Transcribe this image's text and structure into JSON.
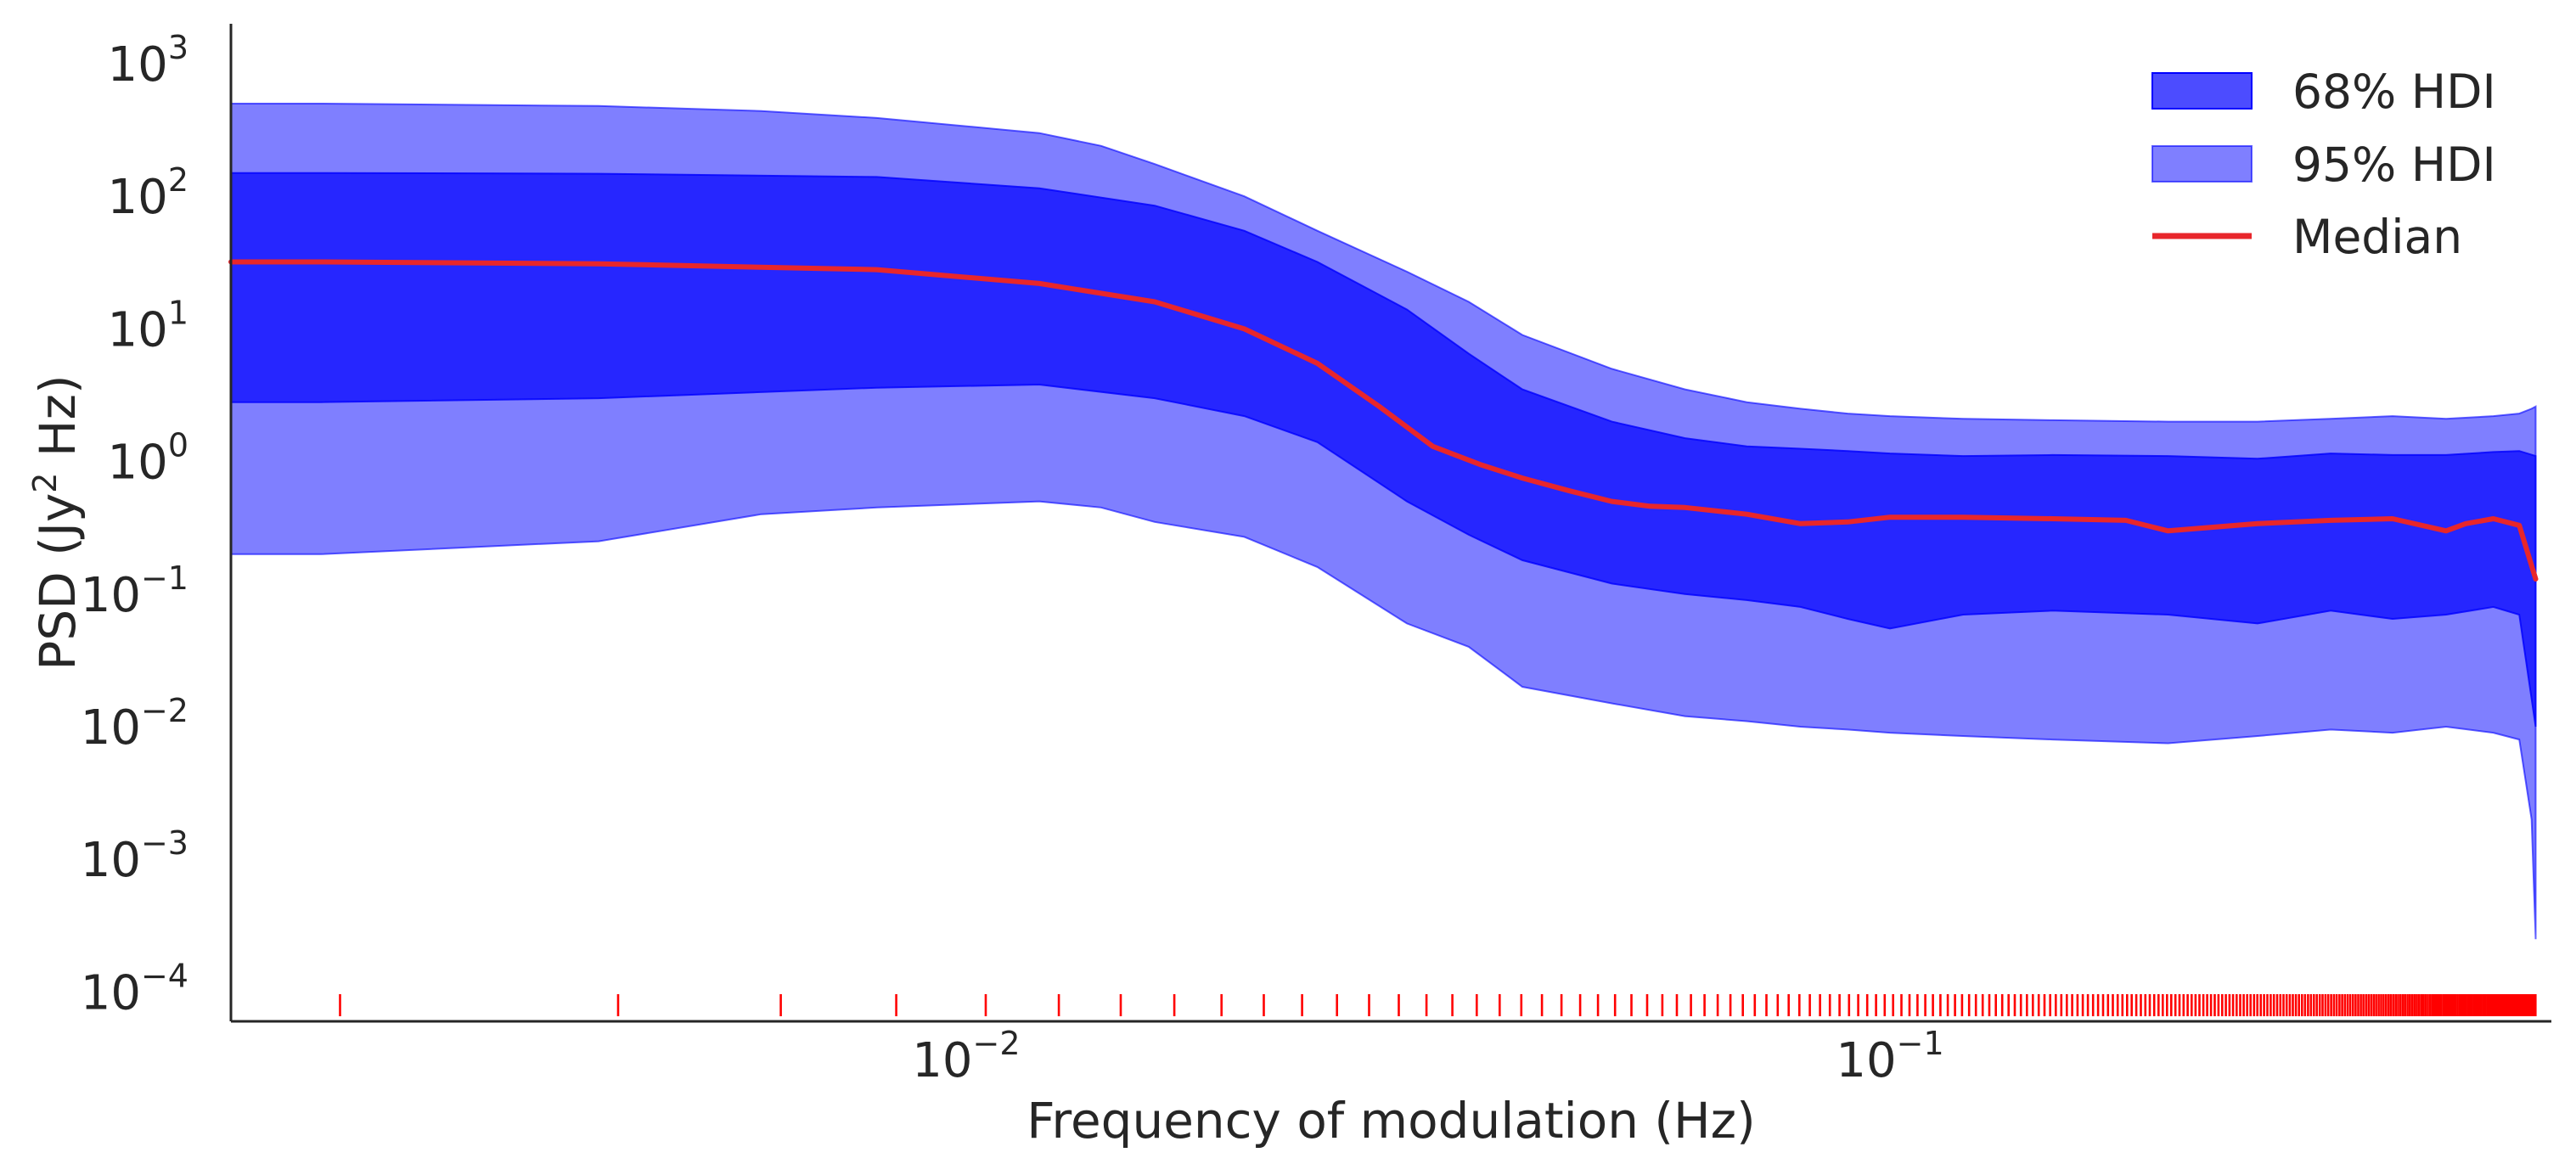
{
  "chart_data": {
    "type": "area",
    "xlabel": "Frequency of modulation (Hz)",
    "ylabel_parts": [
      "PSD (Jy",
      "2",
      " Hz)"
    ],
    "x_scale": "log",
    "y_scale": "log",
    "xlim": [
      0.0016,
      0.52
    ],
    "ylim": [
      6e-05,
      2000
    ],
    "xticks": [
      {
        "value": 0.01,
        "base": "10",
        "exp": "−2"
      },
      {
        "value": 0.1,
        "base": "10",
        "exp": "−1"
      }
    ],
    "yticks": [
      {
        "value": 0.0001,
        "base": "10",
        "exp": "−4"
      },
      {
        "value": 0.001,
        "base": "10",
        "exp": "−3"
      },
      {
        "value": 0.01,
        "base": "10",
        "exp": "−2"
      },
      {
        "value": 0.1,
        "base": "10",
        "exp": "−1"
      },
      {
        "value": 1,
        "base": "10",
        "exp": "0"
      },
      {
        "value": 10,
        "base": "10",
        "exp": "1"
      },
      {
        "value": 100,
        "base": "10",
        "exp": "2"
      },
      {
        "value": 1000,
        "base": "10",
        "exp": "3"
      }
    ],
    "grid": false,
    "legend_position": "top-right",
    "colors": {
      "hdi68": "#0000ff",
      "hdi95": "#0000ff",
      "median": "#e8262b",
      "rug": "#ff0000"
    },
    "series": [
      {
        "name": "68% HDI",
        "kind": "band",
        "x": [
          0.0016,
          0.002,
          0.004,
          0.008,
          0.012,
          0.016,
          0.02,
          0.024,
          0.03,
          0.035,
          0.04,
          0.05,
          0.06,
          0.07,
          0.08,
          0.09,
          0.1,
          0.12,
          0.15,
          0.2,
          0.25,
          0.3,
          0.35,
          0.4,
          0.45,
          0.48,
          0.5
        ],
        "lower": [
          2.8,
          2.8,
          3.0,
          3.6,
          3.8,
          3.0,
          2.2,
          1.4,
          0.5,
          0.28,
          0.18,
          0.12,
          0.1,
          0.09,
          0.08,
          0.065,
          0.055,
          0.07,
          0.075,
          0.07,
          0.06,
          0.075,
          0.065,
          0.07,
          0.08,
          0.07,
          0.01
        ],
        "upper": [
          150,
          150,
          148,
          140,
          115,
          85,
          55,
          32,
          14,
          6.5,
          3.5,
          2.0,
          1.5,
          1.3,
          1.25,
          1.2,
          1.15,
          1.1,
          1.12,
          1.1,
          1.05,
          1.15,
          1.12,
          1.12,
          1.18,
          1.2,
          1.1
        ]
      },
      {
        "name": "95% HDI",
        "kind": "band",
        "x": [
          0.0016,
          0.002,
          0.004,
          0.006,
          0.008,
          0.012,
          0.014,
          0.016,
          0.02,
          0.024,
          0.03,
          0.035,
          0.04,
          0.05,
          0.06,
          0.07,
          0.08,
          0.09,
          0.1,
          0.12,
          0.15,
          0.2,
          0.25,
          0.3,
          0.35,
          0.4,
          0.45,
          0.48,
          0.495,
          0.5
        ],
        "lower": [
          0.2,
          0.2,
          0.25,
          0.4,
          0.45,
          0.5,
          0.45,
          0.35,
          0.27,
          0.16,
          0.06,
          0.04,
          0.02,
          0.015,
          0.012,
          0.011,
          0.01,
          0.0095,
          0.009,
          0.0085,
          0.008,
          0.0075,
          0.0085,
          0.0095,
          0.009,
          0.01,
          0.009,
          0.008,
          0.002,
          0.00025
        ],
        "upper": [
          500,
          500,
          480,
          440,
          390,
          300,
          240,
          175,
          100,
          55,
          27,
          16,
          9,
          5.0,
          3.5,
          2.8,
          2.5,
          2.3,
          2.2,
          2.1,
          2.05,
          2.0,
          2.0,
          2.1,
          2.2,
          2.1,
          2.2,
          2.3,
          2.5,
          2.6
        ]
      },
      {
        "name": "Median",
        "kind": "line",
        "x": [
          0.0016,
          0.002,
          0.004,
          0.008,
          0.012,
          0.016,
          0.02,
          0.024,
          0.028,
          0.032,
          0.036,
          0.04,
          0.045,
          0.05,
          0.055,
          0.06,
          0.07,
          0.08,
          0.09,
          0.1,
          0.12,
          0.15,
          0.18,
          0.2,
          0.25,
          0.3,
          0.35,
          0.4,
          0.42,
          0.45,
          0.48,
          0.5
        ],
        "y": [
          32,
          32,
          31,
          28,
          22,
          16,
          10,
          5.5,
          2.6,
          1.3,
          0.95,
          0.75,
          0.6,
          0.5,
          0.46,
          0.45,
          0.4,
          0.34,
          0.35,
          0.38,
          0.38,
          0.37,
          0.36,
          0.3,
          0.34,
          0.36,
          0.37,
          0.3,
          0.34,
          0.37,
          0.33,
          0.13
        ]
      }
    ],
    "rug": {
      "description_only_for_layout": false,
      "x_start": 0.0021,
      "x_step": 0.0021,
      "x_end": 0.5
    }
  },
  "legend": {
    "items": [
      {
        "label": "68% HDI"
      },
      {
        "label": "95% HDI"
      },
      {
        "label": "Median"
      }
    ]
  }
}
